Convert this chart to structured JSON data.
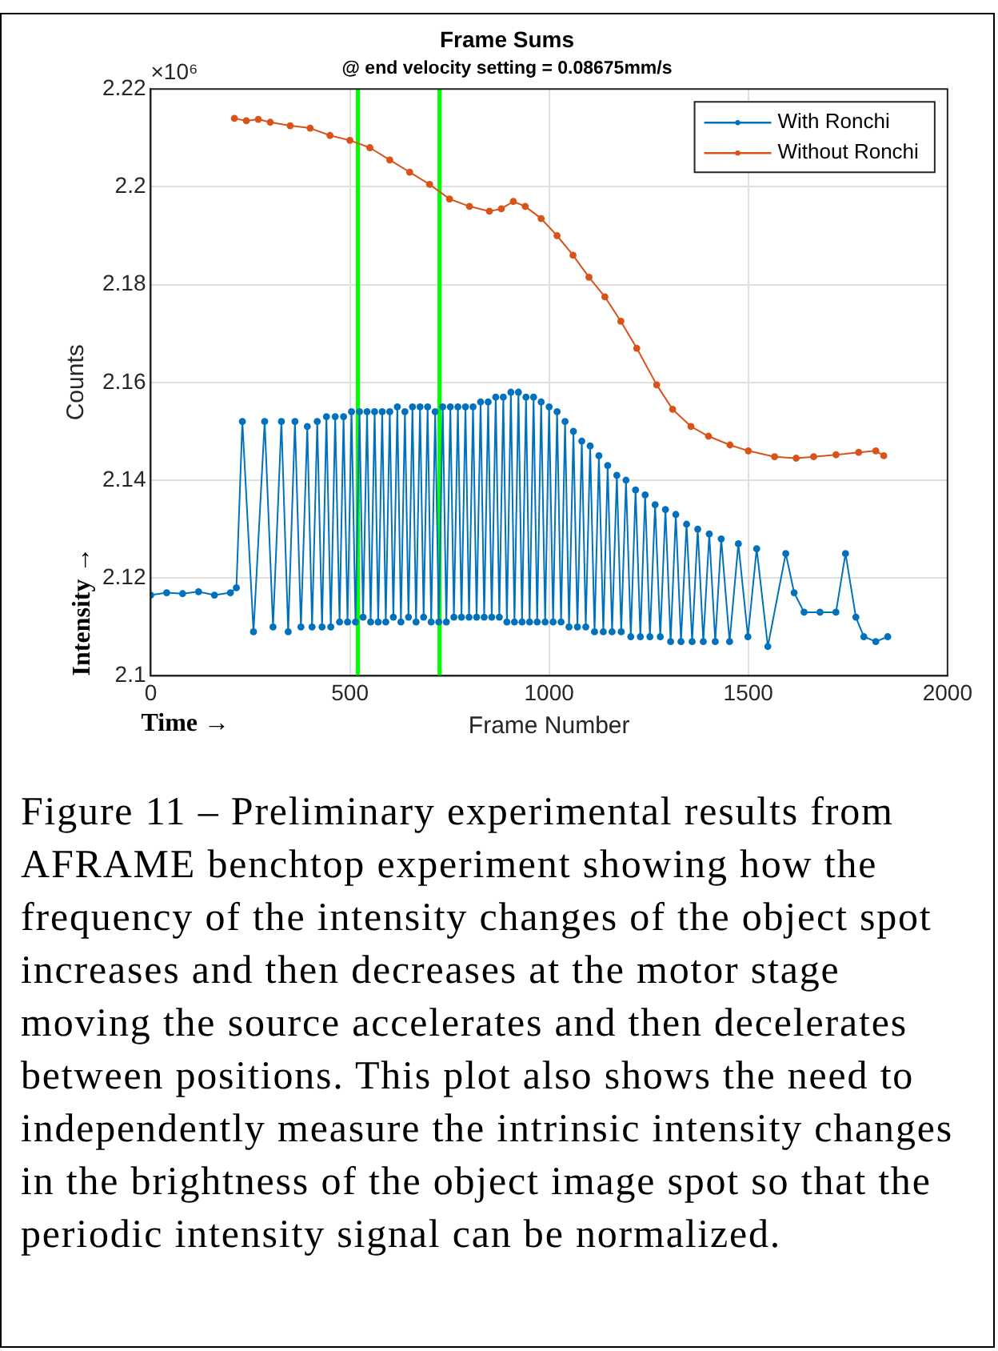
{
  "chart_data": {
    "type": "line",
    "title": "Frame Sums",
    "subtitle": "@ end velocity setting = 0.08675mm/s",
    "xlabel": "Frame Number",
    "ylabel": "Counts",
    "annotations": [
      "×10⁶",
      "Intensity →",
      "Time →",
      "Figure 11 – Preliminary experimental results from AFRAME benchtop experiment showing how the frequency of the intensity changes of the object spot increases and then decreases at the motor stage moving the source accelerates and then decelerates between positions. This plot also shows the need to independently measure the intrinsic intensity changes in the brightness of the object image spot so that the periodic intensity signal can be normalized."
    ],
    "xlim": [
      0,
      2000
    ],
    "xticks": [
      0,
      500,
      1000,
      1500,
      2000
    ],
    "ylim": [
      2.1,
      2.22
    ],
    "yticks": [
      2.1,
      2.12,
      2.14,
      2.16,
      2.18,
      2.2,
      2.22
    ],
    "grid": true,
    "legend": "top right",
    "marker": "circle",
    "line_style": "solid",
    "ref_lines": [
      {
        "axis": "x",
        "value": 520,
        "color": "#00ff00"
      },
      {
        "axis": "x",
        "value": 725,
        "color": "#00ff00"
      }
    ],
    "series": [
      {
        "name": "With Ronchi",
        "color": "#0072bd",
        "x": [
          0,
          40,
          80,
          120,
          160,
          200,
          215,
          230,
          258,
          286,
          307,
          328,
          345,
          362,
          377,
          393,
          405,
          418,
          430,
          441,
          452,
          463,
          474,
          484,
          494,
          504,
          514,
          524,
          533,
          543,
          552,
          562,
          571,
          581,
          590,
          600,
          609,
          619,
          628,
          638,
          647,
          657,
          666,
          676,
          685,
          695,
          704,
          714,
          723,
          733,
          742,
          752,
          761,
          771,
          780,
          790,
          799,
          809,
          818,
          828,
          837,
          847,
          856,
          866,
          875,
          885,
          894,
          904,
          913,
          923,
          932,
          942,
          951,
          961,
          970,
          980,
          990,
          1000,
          1010,
          1020,
          1030,
          1040,
          1050,
          1061,
          1071,
          1082,
          1092,
          1103,
          1114,
          1125,
          1136,
          1147,
          1158,
          1170,
          1181,
          1193,
          1205,
          1217,
          1229,
          1241,
          1253,
          1266,
          1279,
          1292,
          1305,
          1318,
          1331,
          1345,
          1359,
          1373,
          1387,
          1402,
          1417,
          1432,
          1453,
          1475,
          1499,
          1521,
          1549,
          1594,
          1615,
          1640,
          1680,
          1720,
          1744,
          1770,
          1790,
          1820,
          1850
        ],
        "values": [
          2.1165,
          2.117,
          2.1168,
          2.1172,
          2.1165,
          2.117,
          2.118,
          2.152,
          2.109,
          2.152,
          2.11,
          2.152,
          2.109,
          2.152,
          2.11,
          2.151,
          2.11,
          2.152,
          2.11,
          2.153,
          2.11,
          2.153,
          2.111,
          2.153,
          2.111,
          2.154,
          2.111,
          2.154,
          2.112,
          2.154,
          2.111,
          2.154,
          2.111,
          2.154,
          2.111,
          2.154,
          2.112,
          2.155,
          2.111,
          2.154,
          2.112,
          2.155,
          2.111,
          2.155,
          2.112,
          2.155,
          2.111,
          2.154,
          2.111,
          2.155,
          2.111,
          2.155,
          2.112,
          2.155,
          2.112,
          2.155,
          2.112,
          2.155,
          2.112,
          2.156,
          2.112,
          2.156,
          2.112,
          2.157,
          2.112,
          2.157,
          2.111,
          2.158,
          2.111,
          2.158,
          2.111,
          2.157,
          2.111,
          2.157,
          2.111,
          2.156,
          2.111,
          2.155,
          2.111,
          2.154,
          2.111,
          2.152,
          2.11,
          2.15,
          2.11,
          2.148,
          2.11,
          2.147,
          2.109,
          2.145,
          2.109,
          2.143,
          2.109,
          2.141,
          2.109,
          2.14,
          2.108,
          2.138,
          2.108,
          2.137,
          2.108,
          2.135,
          2.108,
          2.134,
          2.107,
          2.133,
          2.107,
          2.131,
          2.107,
          2.13,
          2.107,
          2.129,
          2.107,
          2.128,
          2.107,
          2.127,
          2.108,
          2.126,
          2.106,
          2.125,
          2.117,
          2.113,
          2.113,
          2.113,
          2.125,
          2.112,
          2.108,
          2.107,
          2.108
        ]
      },
      {
        "name": "Without Ronchi",
        "color": "#d95319",
        "x": [
          210,
          240,
          270,
          300,
          350,
          400,
          450,
          500,
          550,
          600,
          650,
          700,
          750,
          800,
          850,
          880,
          910,
          940,
          980,
          1020,
          1060,
          1100,
          1140,
          1180,
          1220,
          1270,
          1310,
          1356,
          1400,
          1454,
          1500,
          1566,
          1620,
          1664,
          1720,
          1777,
          1820,
          1840
        ],
        "values": [
          2.214,
          2.2135,
          2.2138,
          2.2132,
          2.2125,
          2.212,
          2.2105,
          2.2095,
          2.208,
          2.2055,
          2.203,
          2.2005,
          2.1975,
          2.196,
          2.195,
          2.1955,
          2.197,
          2.196,
          2.1935,
          2.19,
          2.186,
          2.1815,
          2.1775,
          2.1725,
          2.167,
          2.1595,
          2.1545,
          2.151,
          2.149,
          2.1472,
          2.146,
          2.1448,
          2.1445,
          2.1448,
          2.1452,
          2.1457,
          2.146,
          2.145
        ]
      }
    ]
  }
}
